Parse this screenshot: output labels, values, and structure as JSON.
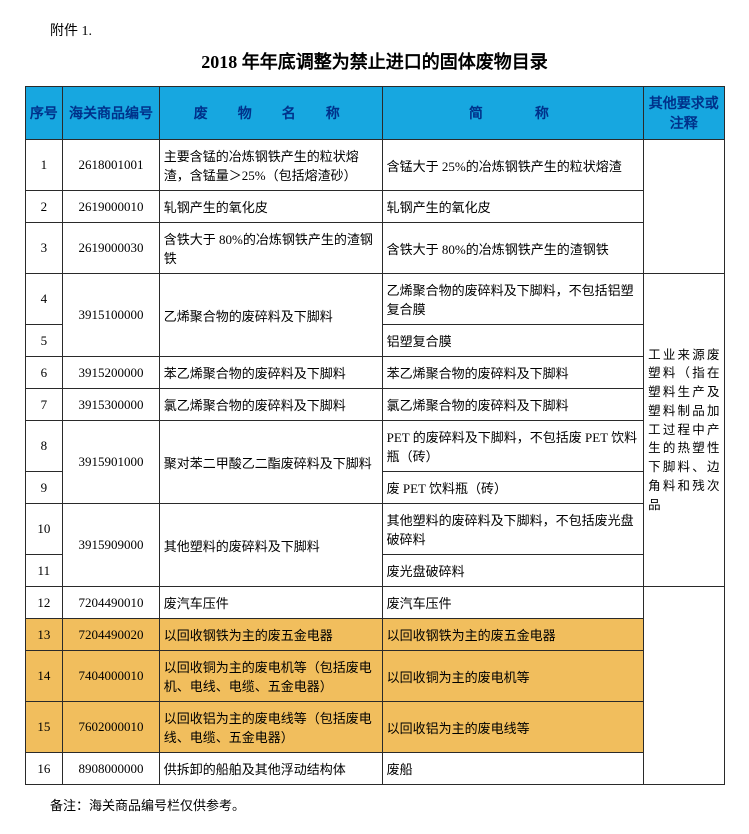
{
  "attachment_label": "附件 1.",
  "title": "2018 年年底调整为禁止进口的固体废物目录",
  "headers": {
    "seq": "序号",
    "code": "海关商品编号",
    "name": "废　物　名　称",
    "short": "简　　称",
    "note": "其他要求或注释"
  },
  "note_cell": "工业来源废塑料（指在塑料生产及塑料制品加工过程中产生的热塑性下脚料、边角料和残次品",
  "rows": [
    {
      "seq": "1",
      "code": "2618001001",
      "name": "主要含锰的冶炼钢铁产生的粒状熔渣，含锰量＞25%（包括熔渣砂）",
      "short": "含锰大于 25%的冶炼钢铁产生的粒状熔渣",
      "hl": false
    },
    {
      "seq": "2",
      "code": "2619000010",
      "name": "轧钢产生的氧化皮",
      "short": "轧钢产生的氧化皮",
      "hl": false
    },
    {
      "seq": "3",
      "code": "2619000030",
      "name": "含铁大于 80%的冶炼钢铁产生的渣钢铁",
      "short": "含铁大于 80%的冶炼钢铁产生的渣钢铁",
      "hl": false
    },
    {
      "seq": "4",
      "code": "3915100000",
      "name": "乙烯聚合物的废碎料及下脚料",
      "short": "乙烯聚合物的废碎料及下脚料，不包括铝塑复合膜",
      "hl": false
    },
    {
      "seq": "5",
      "code": "",
      "name": "",
      "short": "铝塑复合膜",
      "hl": false
    },
    {
      "seq": "6",
      "code": "3915200000",
      "name": "苯乙烯聚合物的废碎料及下脚料",
      "short": "苯乙烯聚合物的废碎料及下脚料",
      "hl": false
    },
    {
      "seq": "7",
      "code": "3915300000",
      "name": "氯乙烯聚合物的废碎料及下脚料",
      "short": "氯乙烯聚合物的废碎料及下脚料",
      "hl": false
    },
    {
      "seq": "8",
      "code": "3915901000",
      "name": "聚对苯二甲酸乙二酯废碎料及下脚料",
      "short": "PET 的废碎料及下脚料，不包括废 PET 饮料瓶（砖）",
      "hl": false
    },
    {
      "seq": "9",
      "code": "",
      "name": "",
      "short": "废 PET 饮料瓶（砖）",
      "hl": false
    },
    {
      "seq": "10",
      "code": "3915909000",
      "name": "其他塑料的废碎料及下脚料",
      "short": "其他塑料的废碎料及下脚料，不包括废光盘破碎料",
      "hl": false
    },
    {
      "seq": "11",
      "code": "",
      "name": "",
      "short": "废光盘破碎料",
      "hl": false
    },
    {
      "seq": "12",
      "code": "7204490010",
      "name": "废汽车压件",
      "short": "废汽车压件",
      "hl": false
    },
    {
      "seq": "13",
      "code": "7204490020",
      "name": "以回收钢铁为主的废五金电器",
      "short": "以回收钢铁为主的废五金电器",
      "hl": true
    },
    {
      "seq": "14",
      "code": "7404000010",
      "name": "以回收铜为主的废电机等（包括废电机、电线、电缆、五金电器）",
      "short": "以回收铜为主的废电机等",
      "hl": true
    },
    {
      "seq": "15",
      "code": "7602000010",
      "name": "以回收铝为主的废电线等（包括废电线、电缆、五金电器）",
      "short": "以回收铝为主的废电线等",
      "hl": true
    },
    {
      "seq": "16",
      "code": "8908000000",
      "name": "供拆卸的船舶及其他浮动结构体",
      "short": "废船",
      "hl": false
    }
  ],
  "footer": "备注：海关商品编号栏仅供参考。",
  "colors": {
    "header_bg": "#17a7e0",
    "header_text": "#00318a",
    "highlight_bg": "#f1be5d",
    "border": "#2a2a2a"
  }
}
